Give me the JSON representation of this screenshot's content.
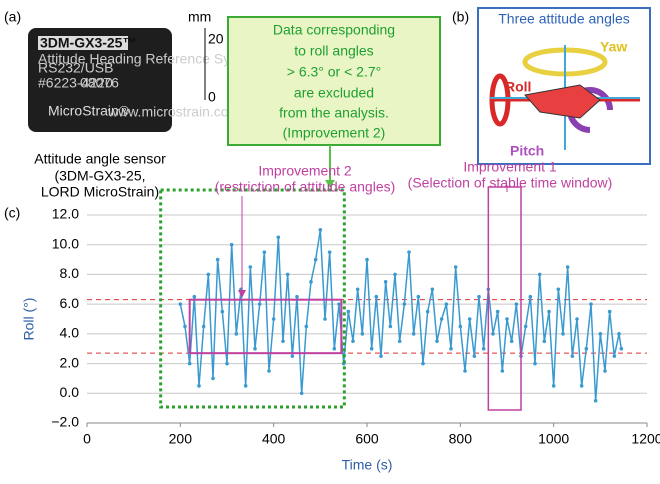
{
  "panel_a": {
    "label": "(a)",
    "sensor_texts": [
      "3DM-GX3-25™",
      "Attitude Heading Reference System",
      "RS232/USB",
      "#6223-4220",
      "08076",
      "MicroStrain®",
      "www.microstrain.com"
    ],
    "ruler": [
      "mm",
      "20",
      "0"
    ],
    "caption": [
      "Attitude angle sensor",
      "(3DM-GX3-25,",
      "LORD MicroStrain)"
    ]
  },
  "callout": [
    "Data corresponding",
    "to roll angles",
    "> 6.3° or < 2.7°",
    "are excluded",
    "from the analysis.",
    "(Improvement 2)"
  ],
  "panel_b": {
    "label": "(b)",
    "title": "Three attitude angles",
    "roll": "Roll",
    "yaw": "Yaw",
    "pitch": "Pitch"
  },
  "chart_data": {
    "type": "line",
    "label": "(c)",
    "xlabel": "Time (s)",
    "ylabel": "Roll (°)",
    "color": "#3a9ad0",
    "xlim": [
      0,
      1200
    ],
    "xticks": [
      0,
      200,
      400,
      600,
      800,
      1000,
      1200
    ],
    "ylim": [
      -2,
      12
    ],
    "yticks": [
      {
        "value": -2,
        "label": "−2.0"
      },
      {
        "value": 0,
        "label": "0.0"
      },
      {
        "value": 2,
        "label": "2.0"
      },
      {
        "value": 4,
        "label": "4.0"
      },
      {
        "value": 6,
        "label": "6.0"
      },
      {
        "value": 8,
        "label": "8.0"
      },
      {
        "value": 10,
        "label": "10.0"
      },
      {
        "value": 12,
        "label": "12.0"
      }
    ],
    "grid": true,
    "reference_lines": [
      6.3,
      2.7
    ],
    "restricted_range": [
      220,
      545
    ],
    "stable_window": [
      860,
      930
    ],
    "annotations": [
      [
        "Improvement 2",
        "(restriction of attitude angles)"
      ],
      [
        "Improvement 1",
        "(Selection of stable time window)"
      ]
    ],
    "x": [
      200,
      210,
      220,
      230,
      240,
      250,
      260,
      270,
      280,
      290,
      300,
      310,
      320,
      330,
      340,
      350,
      360,
      370,
      380,
      390,
      400,
      410,
      420,
      430,
      440,
      450,
      460,
      470,
      480,
      490,
      500,
      510,
      520,
      530,
      540,
      550,
      560,
      570,
      580,
      590,
      600,
      610,
      620,
      630,
      640,
      650,
      660,
      670,
      680,
      690,
      700,
      710,
      720,
      730,
      740,
      750,
      760,
      770,
      780,
      790,
      800,
      810,
      820,
      830,
      840,
      850,
      860,
      870,
      880,
      890,
      900,
      910,
      920,
      930,
      940,
      950,
      960,
      970,
      980,
      990,
      1000,
      1010,
      1020,
      1030,
      1040,
      1050,
      1060,
      1070,
      1080,
      1090,
      1100,
      1110,
      1120,
      1130,
      1140,
      1145
    ],
    "values": [
      6.0,
      4.5,
      2.0,
      6.5,
      0.5,
      4.5,
      8.0,
      1.0,
      9.0,
      5.5,
      2.0,
      10.0,
      4.0,
      7.0,
      0.5,
      8.5,
      3.0,
      6.0,
      9.5,
      1.5,
      5.0,
      10.5,
      3.5,
      8.0,
      2.5,
      6.5,
      0.0,
      4.5,
      7.5,
      9.0,
      11.0,
      5.0,
      9.5,
      3.0,
      6.0,
      2.0,
      5.5,
      3.5,
      7.0,
      4.0,
      9.0,
      3.0,
      6.5,
      2.5,
      7.5,
      4.5,
      8.0,
      3.5,
      6.0,
      9.5,
      4.0,
      6.5,
      2.0,
      5.5,
      7.0,
      3.5,
      5.0,
      6.0,
      3.0,
      8.5,
      4.5,
      1.5,
      5.0,
      2.5,
      6.5,
      3.0,
      7.0,
      4.0,
      5.5,
      1.5,
      5.0,
      3.5,
      6.0,
      2.5,
      4.5,
      6.5,
      2.0,
      8.0,
      3.5,
      5.5,
      0.5,
      7.0,
      4.0,
      8.5,
      2.5,
      5.0,
      0.5,
      3.0,
      6.0,
      -0.5,
      4.0,
      1.5,
      5.5,
      2.5,
      4.0,
      3.0
    ]
  }
}
